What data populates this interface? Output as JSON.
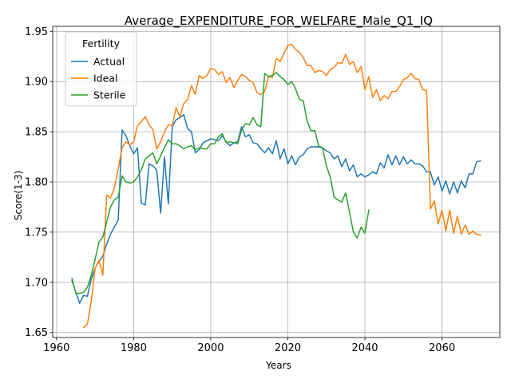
{
  "chart_data": {
    "type": "line",
    "title": "Average_EXPENDITURE_FOR_WELFARE_Male_Q1_IQ",
    "xlabel": "Years",
    "ylabel": "Score(1-3)",
    "xlim": [
      1959,
      2075
    ],
    "ylim": [
      1.645,
      1.955
    ],
    "xticks": [
      1960,
      1980,
      2000,
      2020,
      2040,
      2060
    ],
    "yticks": [
      1.65,
      1.7,
      1.75,
      1.8,
      1.85,
      1.9,
      1.95
    ],
    "ytick_labels": [
      "1.65",
      "1.70",
      "1.75",
      "1.80",
      "1.85",
      "1.90",
      "1.95"
    ],
    "grid": true,
    "legend": {
      "title": "Fertility",
      "position": "upper-left"
    },
    "series": [
      {
        "name": "Actual",
        "color": "#1f77b4",
        "x": [
          1964,
          1965,
          1966,
          1967,
          1968,
          1969,
          1970,
          1971,
          1972,
          1973,
          1974,
          1975,
          1976,
          1977,
          1978,
          1979,
          1980,
          1981,
          1982,
          1983,
          1984,
          1985,
          1986,
          1987,
          1988,
          1989,
          1990,
          1991,
          1992,
          1993,
          1994,
          1995,
          1996,
          1997,
          1998,
          1999,
          2000,
          2001,
          2002,
          2003,
          2004,
          2005,
          2006,
          2007,
          2008,
          2009,
          2010,
          2011,
          2012,
          2013,
          2014,
          2015,
          2016,
          2017,
          2018,
          2019,
          2020,
          2021,
          2022,
          2023,
          2024,
          2025,
          2026,
          2027,
          2028,
          2029,
          2030,
          2031,
          2032,
          2033,
          2034,
          2035,
          2036,
          2037,
          2038,
          2039,
          2040,
          2041,
          2042,
          2043,
          2044,
          2045,
          2046,
          2047,
          2048,
          2049,
          2050,
          2051,
          2052,
          2053,
          2054,
          2055,
          2056,
          2057,
          2058,
          2059,
          2060,
          2061,
          2062,
          2063,
          2064,
          2065,
          2066,
          2067,
          2068,
          2069,
          2070
        ],
        "y": [
          1.702,
          1.69,
          1.679,
          1.687,
          1.686,
          1.703,
          1.714,
          1.721,
          1.726,
          1.738,
          1.748,
          1.755,
          1.762,
          1.852,
          1.846,
          1.836,
          1.828,
          1.834,
          1.779,
          1.777,
          1.818,
          1.816,
          1.812,
          1.769,
          1.825,
          1.778,
          1.855,
          1.862,
          1.864,
          1.867,
          1.853,
          1.85,
          1.829,
          1.832,
          1.839,
          1.841,
          1.843,
          1.842,
          1.841,
          1.846,
          1.84,
          1.836,
          1.839,
          1.84,
          1.855,
          1.845,
          1.847,
          1.839,
          1.838,
          1.833,
          1.829,
          1.834,
          1.828,
          1.841,
          1.823,
          1.833,
          1.818,
          1.826,
          1.817,
          1.825,
          1.827,
          1.833,
          1.835,
          1.835,
          1.835,
          1.834,
          1.831,
          1.829,
          1.823,
          1.826,
          1.815,
          1.823,
          1.811,
          1.817,
          1.805,
          1.808,
          1.805,
          1.807,
          1.81,
          1.808,
          1.819,
          1.814,
          1.827,
          1.817,
          1.826,
          1.817,
          1.825,
          1.818,
          1.822,
          1.818,
          1.818,
          1.816,
          1.81,
          1.81,
          1.797,
          1.805,
          1.791,
          1.801,
          1.788,
          1.8,
          1.789,
          1.801,
          1.794,
          1.808,
          1.808,
          1.82,
          1.821
        ]
      },
      {
        "name": "Ideal",
        "color": "#ff7f0e",
        "x": [
          1967,
          1968,
          1969,
          1970,
          1971,
          1972,
          1973,
          1974,
          1975,
          1976,
          1977,
          1978,
          1979,
          1980,
          1981,
          1982,
          1983,
          1984,
          1985,
          1986,
          1987,
          1988,
          1989,
          1990,
          1991,
          1992,
          1993,
          1994,
          1995,
          1996,
          1997,
          1998,
          1999,
          2000,
          2001,
          2002,
          2003,
          2004,
          2005,
          2006,
          2007,
          2008,
          2009,
          2010,
          2011,
          2012,
          2013,
          2014,
          2015,
          2016,
          2017,
          2018,
          2019,
          2020,
          2021,
          2022,
          2023,
          2024,
          2025,
          2026,
          2027,
          2028,
          2029,
          2030,
          2031,
          2032,
          2033,
          2034,
          2035,
          2036,
          2037,
          2038,
          2039,
          2040,
          2041,
          2042,
          2043,
          2044,
          2045,
          2046,
          2047,
          2048,
          2049,
          2050,
          2051,
          2052,
          2053,
          2054,
          2055,
          2056,
          2057,
          2058,
          2059,
          2060,
          2061,
          2062,
          2063,
          2064,
          2065,
          2066,
          2067,
          2068,
          2069,
          2070
        ],
        "y": [
          1.655,
          1.658,
          1.681,
          1.714,
          1.722,
          1.707,
          1.787,
          1.784,
          1.794,
          1.813,
          1.834,
          1.84,
          1.837,
          1.84,
          1.856,
          1.86,
          1.865,
          1.857,
          1.852,
          1.833,
          1.84,
          1.85,
          1.857,
          1.856,
          1.874,
          1.865,
          1.878,
          1.882,
          1.896,
          1.887,
          1.906,
          1.903,
          1.906,
          1.913,
          1.912,
          1.907,
          1.91,
          1.899,
          1.904,
          1.894,
          1.901,
          1.907,
          1.905,
          1.901,
          1.899,
          1.889,
          1.887,
          1.89,
          1.905,
          1.904,
          1.923,
          1.92,
          1.928,
          1.936,
          1.937,
          1.932,
          1.929,
          1.924,
          1.916,
          1.916,
          1.909,
          1.911,
          1.91,
          1.906,
          1.912,
          1.914,
          1.919,
          1.918,
          1.927,
          1.917,
          1.92,
          1.909,
          1.915,
          1.892,
          1.905,
          1.884,
          1.892,
          1.881,
          1.886,
          1.883,
          1.89,
          1.89,
          1.895,
          1.902,
          1.904,
          1.908,
          1.903,
          1.902,
          1.892,
          1.891,
          1.773,
          1.781,
          1.758,
          1.772,
          1.751,
          1.772,
          1.749,
          1.766,
          1.748,
          1.757,
          1.748,
          1.751,
          1.748,
          1.747
        ]
      },
      {
        "name": "Sterile",
        "color": "#2ca02c",
        "x": [
          1964,
          1965,
          1966,
          1967,
          1968,
          1969,
          1970,
          1971,
          1972,
          1973,
          1974,
          1975,
          1976,
          1977,
          1978,
          1979,
          1980,
          1981,
          1982,
          1983,
          1984,
          1985,
          1986,
          1987,
          1988,
          1989,
          1990,
          1991,
          1992,
          1993,
          1994,
          1995,
          1996,
          1997,
          1998,
          1999,
          2000,
          2001,
          2002,
          2003,
          2004,
          2005,
          2006,
          2007,
          2008,
          2009,
          2010,
          2011,
          2012,
          2013,
          2014,
          2015,
          2016,
          2017,
          2018,
          2019,
          2020,
          2021,
          2022,
          2023,
          2024,
          2025,
          2026,
          2027,
          2028,
          2029,
          2030,
          2031,
          2032,
          2033,
          2034,
          2035,
          2036,
          2037,
          2038,
          2039,
          2040,
          2041
        ],
        "y": [
          1.704,
          1.689,
          1.689,
          1.69,
          1.695,
          1.707,
          1.723,
          1.74,
          1.745,
          1.76,
          1.775,
          1.782,
          1.785,
          1.806,
          1.8,
          1.799,
          1.8,
          1.805,
          1.812,
          1.823,
          1.826,
          1.829,
          1.818,
          1.826,
          1.834,
          1.842,
          1.838,
          1.838,
          1.836,
          1.833,
          1.835,
          1.836,
          1.832,
          1.834,
          1.833,
          1.833,
          1.838,
          1.838,
          1.845,
          1.848,
          1.839,
          1.84,
          1.839,
          1.838,
          1.852,
          1.858,
          1.857,
          1.864,
          1.857,
          1.855,
          1.908,
          1.905,
          1.906,
          1.909,
          1.905,
          1.902,
          1.897,
          1.9,
          1.893,
          1.882,
          1.881,
          1.861,
          1.851,
          1.851,
          1.836,
          1.834,
          1.816,
          1.805,
          1.785,
          1.782,
          1.78,
          1.789,
          1.77,
          1.75,
          1.744,
          1.755,
          1.749,
          1.772
        ]
      }
    ]
  }
}
